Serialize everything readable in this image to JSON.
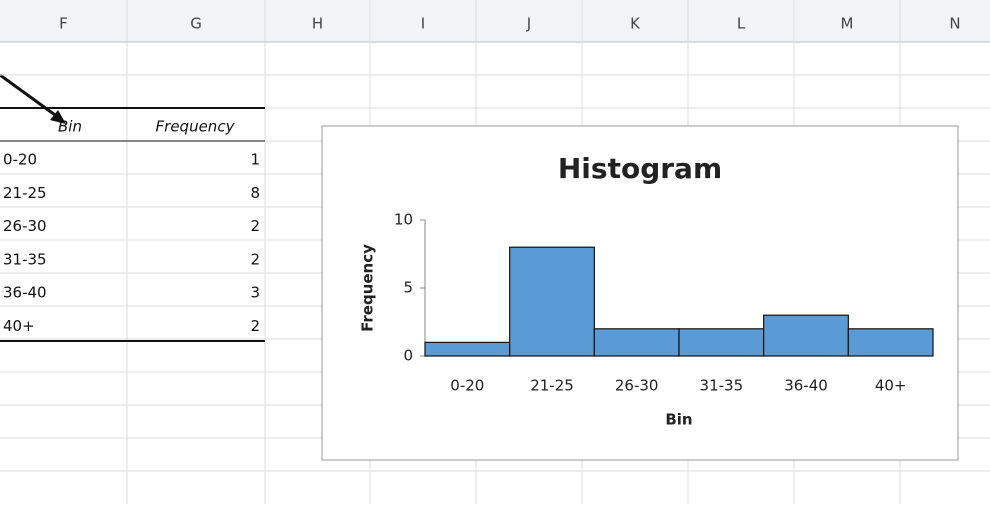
{
  "spreadsheet": {
    "columns": [
      "F",
      "G",
      "H",
      "I",
      "J",
      "K",
      "L",
      "M",
      "N"
    ],
    "table": {
      "headers": [
        "Bin",
        "Frequency"
      ],
      "rows": [
        [
          "0-20",
          1
        ],
        [
          "21-25",
          8
        ],
        [
          "26-30",
          2
        ],
        [
          "31-35",
          2
        ],
        [
          "36-40",
          3
        ],
        [
          "40+",
          2
        ]
      ]
    }
  },
  "chart_data": {
    "type": "bar",
    "title": "Histogram",
    "x_label": "Bin",
    "y_label": "Frequency",
    "categories": [
      "0-20",
      "21-25",
      "26-30",
      "31-35",
      "36-40",
      "40+"
    ],
    "values": [
      1,
      8,
      2,
      2,
      3,
      2
    ],
    "color": "#5b9bd5",
    "ylim": [
      0,
      10
    ],
    "yticks": [
      0,
      5,
      10
    ]
  }
}
